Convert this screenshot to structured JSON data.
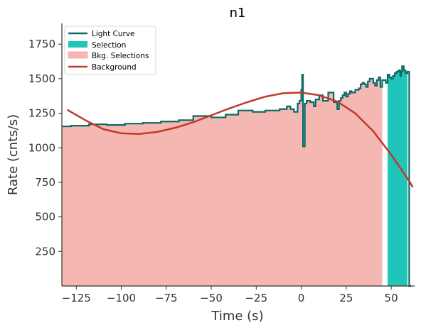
{
  "chart_data": {
    "type": "line",
    "title": "n1",
    "xlabel": "Time (s)",
    "ylabel": "Rate (cnts/s)",
    "xlim": [
      -133,
      63
    ],
    "ylim": [
      0,
      1900
    ],
    "xticks": [
      -125,
      -100,
      -75,
      -50,
      -25,
      0,
      25,
      50
    ],
    "xtick_labels": [
      "−125",
      "−100",
      "−75",
      "−50",
      "−25",
      "0",
      "25",
      "50"
    ],
    "yticks": [
      250,
      500,
      750,
      1000,
      1250,
      1500,
      1750
    ],
    "ytick_labels": [
      "250",
      "500",
      "750",
      "1000",
      "1250",
      "1500",
      "1750"
    ],
    "legend_position": "top-left",
    "colors": {
      "light_curve": "#0b6a65",
      "selection": "#20c4b8",
      "bkg_selection": "#f5b7b1",
      "background": "#c0392b"
    },
    "series": [
      {
        "name": "Light Curve",
        "kind": "step",
        "x": [
          -133,
          -128,
          -118,
          -108,
          -98,
          -88,
          -78,
          -68,
          -60,
          -50,
          -42,
          -35,
          -27,
          -20,
          -12,
          -8,
          -6,
          -4,
          -2,
          -1,
          0,
          0.5,
          1,
          2,
          3,
          5,
          7,
          8,
          10,
          12,
          15,
          18,
          20,
          21,
          22,
          23,
          24,
          25,
          26,
          27,
          28,
          30,
          32,
          33,
          34,
          35,
          36,
          37,
          38,
          40,
          41,
          42,
          43,
          44,
          45,
          47,
          48,
          49,
          50,
          51,
          52,
          53,
          54,
          55,
          55.5,
          56,
          57,
          58,
          59,
          60,
          61
        ],
        "y": [
          1155,
          1160,
          1170,
          1165,
          1175,
          1180,
          1190,
          1200,
          1230,
          1220,
          1240,
          1270,
          1260,
          1270,
          1280,
          1300,
          1280,
          1260,
          1320,
          1340,
          1420,
          1530,
          1010,
          1320,
          1340,
          1330,
          1300,
          1350,
          1380,
          1340,
          1400,
          1330,
          1280,
          1340,
          1360,
          1380,
          1400,
          1370,
          1390,
          1410,
          1400,
          1420,
          1430,
          1460,
          1470,
          1460,
          1440,
          1480,
          1500,
          1470,
          1450,
          1490,
          1510,
          1440,
          1490,
          1470,
          1530,
          1510,
          1500,
          1520,
          1540,
          1550,
          1560,
          1520,
          1550,
          1590,
          1560,
          1540,
          1550,
          0,
          0
        ]
      },
      {
        "name": "Selection",
        "kind": "fill",
        "x_range": [
          48,
          59
        ]
      },
      {
        "name": "Bkg. Selections",
        "kind": "fill",
        "x_range": [
          -133,
          45
        ]
      },
      {
        "name": "Background",
        "kind": "line",
        "x": [
          -130,
          -120,
          -110,
          -100,
          -90,
          -80,
          -70,
          -60,
          -50,
          -40,
          -30,
          -20,
          -10,
          0,
          10,
          20,
          30,
          40,
          50,
          55,
          60,
          62
        ],
        "y": [
          1275,
          1200,
          1135,
          1105,
          1100,
          1115,
          1145,
          1185,
          1235,
          1285,
          1330,
          1370,
          1395,
          1400,
          1380,
          1335,
          1250,
          1120,
          950,
          855,
          760,
          715
        ]
      }
    ]
  }
}
